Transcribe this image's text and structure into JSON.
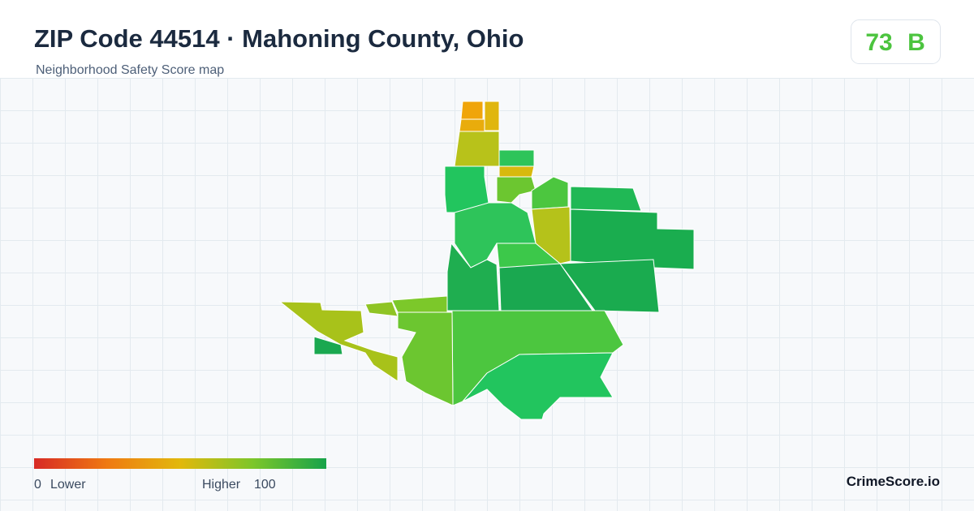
{
  "header": {
    "title": "ZIP Code 44514 · Mahoning County, Ohio",
    "subtitle": "Neighborhood Safety Score map"
  },
  "score": {
    "value": "73",
    "grade": "B"
  },
  "legend": {
    "min": "0",
    "min_label": "Lower",
    "max_label": "Higher",
    "max": "100"
  },
  "brand": "CrimeScore.io"
}
